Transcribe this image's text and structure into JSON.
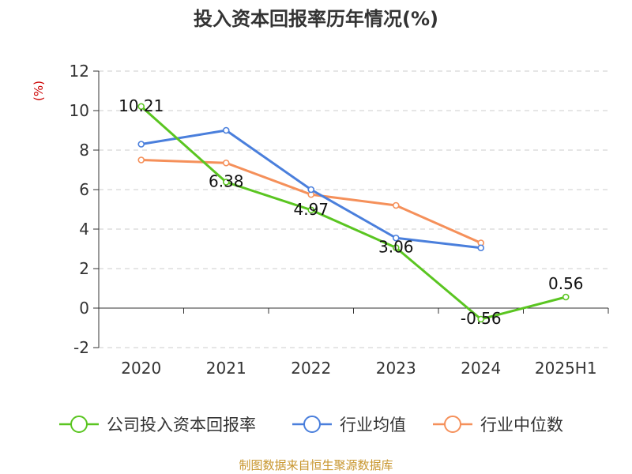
{
  "chart_data": {
    "type": "line",
    "title": "投入资本回报率历年情况(%)",
    "ylabel": "(%)",
    "categories": [
      "2020",
      "2021",
      "2022",
      "2023",
      "2024",
      "2025H1"
    ],
    "ylim": [
      -2,
      12
    ],
    "yticks": [
      -2,
      0,
      2,
      4,
      6,
      8,
      10,
      12
    ],
    "grid": true,
    "legend_position": "bottom",
    "series": [
      {
        "name": "公司投入资本回报率",
        "color": "#5ac521",
        "values": [
          10.21,
          6.38,
          4.97,
          3.06,
          -0.56,
          0.56
        ],
        "labels": [
          "10.21",
          "6.38",
          "4.97",
          "3.06",
          "-0.56",
          "0.56"
        ]
      },
      {
        "name": "行业均值",
        "color": "#4a7fdc",
        "values": [
          8.3,
          9.0,
          6.0,
          3.55,
          3.05,
          null
        ]
      },
      {
        "name": "行业中位数",
        "color": "#f5905a",
        "values": [
          7.5,
          7.35,
          5.75,
          5.2,
          3.3,
          null
        ]
      }
    ]
  },
  "source": "制图数据来自恒生聚源数据库"
}
